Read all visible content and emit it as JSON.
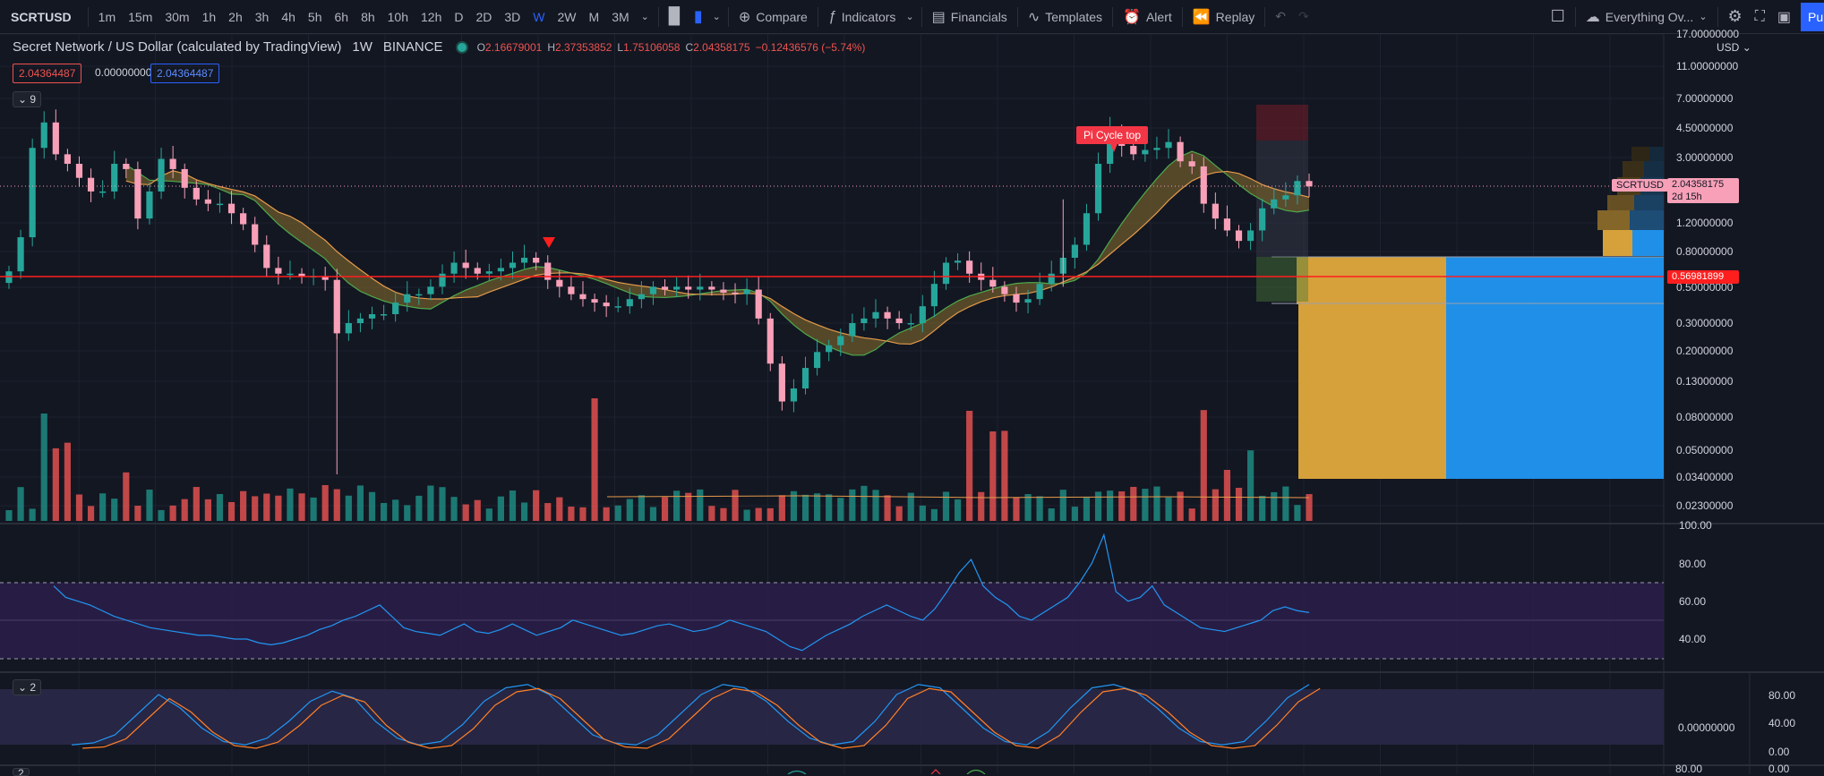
{
  "toolbar": {
    "symbol": "SCRTUSD",
    "intervals": [
      "1m",
      "15m",
      "30m",
      "1h",
      "2h",
      "3h",
      "4h",
      "5h",
      "6h",
      "8h",
      "10h",
      "12h",
      "D",
      "2D",
      "3D",
      "W",
      "2W",
      "M",
      "3M"
    ],
    "active_interval": "W",
    "compare": "Compare",
    "indicators": "Indicators",
    "financials": "Financials",
    "templates": "Templates",
    "alert": "Alert",
    "replay": "Replay",
    "layout_name": "Everything Ov...",
    "publish": "Pu"
  },
  "legend": {
    "name": "Secret Network / US Dollar (calculated by TradingView)",
    "timeframe": "1W",
    "exchange": "BINANCE",
    "open_label": "O",
    "open": "2.16679001",
    "high_label": "H",
    "high": "2.37353852",
    "low_label": "L",
    "low": "1.75106058",
    "close_label": "C",
    "close": "2.04358175",
    "change": "−0.12436576 (−5.74%)",
    "values": [
      "2.04364487",
      "0.00000000",
      "2.04364487"
    ],
    "collapse_main": "9",
    "collapse_stoch": "2",
    "collapse_bottom": "2"
  },
  "price_axis": {
    "currency": "USD",
    "labels": [
      "17.00000000",
      "11.00000000",
      "7.00000000",
      "4.50000000",
      "3.00000000",
      "1.20000000",
      "0.80000000",
      "0.50000000",
      "0.30000000",
      "0.20000000",
      "0.13000000",
      "0.08000000",
      "0.05000000",
      "0.03400000",
      "0.02300000"
    ],
    "last_symbol": "SCRTUSD",
    "last_price": "2.04358175",
    "countdown": "2d 15h",
    "hline_price": "0.56981899"
  },
  "rsi_axis": {
    "labels": [
      "100.00",
      "80.00",
      "60.00",
      "40.00"
    ]
  },
  "stoch_axis": {
    "labels": [
      "80.00",
      "40.00",
      "0.00"
    ],
    "left_label": "0.00000000"
  },
  "bottom_axis": {
    "labels": [
      "80.00",
      "0.00"
    ]
  },
  "annotations": {
    "pi_cycle": "Pi Cycle top"
  },
  "colors": {
    "up": "#26a69a",
    "down": "#f7a0b8",
    "ribbon_fill": "#6b5a2c",
    "ribbon_a": "#e59a4b",
    "ribbon_b": "#4ea94b",
    "hline": "#ff1e1e",
    "vp_up": "#e0a93c",
    "vp_down": "#2196f3",
    "rsi": "#2196f3",
    "stoch_k": "#2196f3",
    "stoch_d": "#ff7f27",
    "accent": "#2962ff"
  },
  "chart_data": {
    "type": "candlestick",
    "symbol": "SCRTUSD",
    "interval": "1W",
    "scale": "log",
    "y_axis_ticks": [
      17,
      11,
      7,
      4.5,
      3,
      1.2,
      0.8,
      0.5,
      0.3,
      0.2,
      0.13,
      0.08,
      0.05,
      0.034,
      0.023
    ],
    "closes_approx": [
      0.62,
      1.0,
      3.5,
      5.0,
      3.2,
      2.8,
      2.3,
      1.9,
      1.9,
      2.8,
      2.6,
      1.3,
      1.9,
      3.0,
      2.6,
      2.0,
      1.7,
      1.6,
      1.6,
      1.4,
      1.2,
      0.9,
      0.65,
      0.6,
      0.6,
      0.58,
      0.58,
      0.55,
      0.26,
      0.3,
      0.32,
      0.34,
      0.34,
      0.4,
      0.45,
      0.45,
      0.5,
      0.6,
      0.7,
      0.65,
      0.6,
      0.62,
      0.65,
      0.7,
      0.75,
      0.7,
      0.55,
      0.5,
      0.45,
      0.42,
      0.4,
      0.38,
      0.38,
      0.42,
      0.45,
      0.5,
      0.48,
      0.5,
      0.48,
      0.5,
      0.48,
      0.46,
      0.45,
      0.48,
      0.32,
      0.17,
      0.1,
      0.12,
      0.16,
      0.2,
      0.22,
      0.25,
      0.3,
      0.32,
      0.35,
      0.32,
      0.3,
      0.3,
      0.38,
      0.52,
      0.7,
      0.72,
      0.6,
      0.55,
      0.5,
      0.45,
      0.4,
      0.42,
      0.52,
      0.6,
      0.75,
      0.9,
      1.4,
      2.8,
      4.5,
      3.6,
      3.2,
      3.4,
      3.5,
      3.8,
      2.9,
      2.7,
      1.6,
      1.3,
      1.1,
      0.95,
      1.1,
      1.5,
      1.7,
      1.8,
      2.2,
      2.04
    ],
    "rsi_approx": [
      68,
      62,
      60,
      58,
      55,
      52,
      50,
      48,
      46,
      45,
      44,
      43,
      42,
      42,
      41,
      40,
      40,
      38,
      37,
      38,
      40,
      42,
      45,
      47,
      50,
      52,
      55,
      58,
      52,
      46,
      44,
      43,
      42,
      45,
      48,
      44,
      43,
      45,
      48,
      45,
      42,
      44,
      46,
      50,
      48,
      46,
      44,
      42,
      43,
      45,
      47,
      48,
      46,
      44,
      45,
      47,
      50,
      48,
      46,
      44,
      40,
      36,
      34,
      38,
      42,
      45,
      48,
      52,
      55,
      58,
      55,
      52,
      50,
      56,
      65,
      75,
      82,
      68,
      62,
      58,
      52,
      50,
      54,
      58,
      62,
      70,
      80,
      95,
      65,
      60,
      62,
      68,
      58,
      54,
      50,
      46,
      45,
      44,
      46,
      48,
      50,
      55,
      57,
      55,
      54
    ],
    "stoch_k_approx": [
      5,
      8,
      20,
      50,
      80,
      60,
      30,
      10,
      5,
      15,
      40,
      70,
      85,
      75,
      40,
      15,
      5,
      10,
      35,
      70,
      90,
      95,
      80,
      50,
      20,
      8,
      5,
      20,
      50,
      80,
      95,
      90,
      70,
      40,
      15,
      5,
      10,
      40,
      80,
      95,
      90,
      60,
      30,
      10,
      5,
      25,
      60,
      90,
      95,
      85,
      60,
      30,
      10,
      5,
      10,
      40,
      75,
      95
    ],
    "volume_note": "weekly volume histogram with 20-period moving average"
  }
}
